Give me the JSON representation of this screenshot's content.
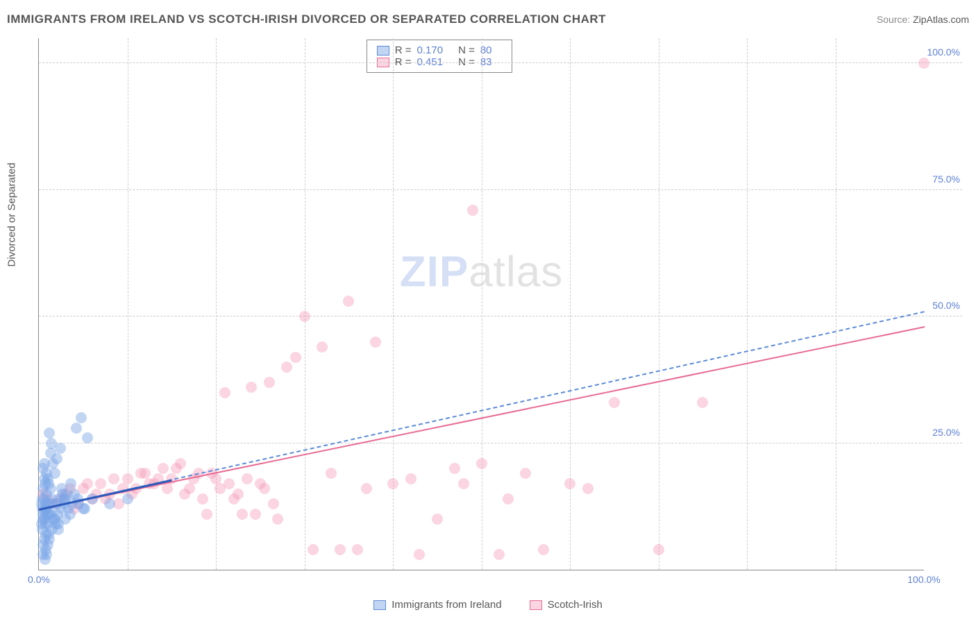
{
  "title": "IMMIGRANTS FROM IRELAND VS SCOTCH-IRISH DIVORCED OR SEPARATED CORRELATION CHART",
  "source_label": "Source: ",
  "source_value": "ZipAtlas.com",
  "y_axis_label": "Divorced or Separated",
  "watermark_zip": "ZIP",
  "watermark_atlas": "atlas",
  "chart": {
    "type": "scatter",
    "background_color": "#ffffff",
    "grid_color": "#cccccc",
    "axis_color": "#888888",
    "tick_label_color": "#5b7fd6",
    "xlim": [
      0,
      100
    ],
    "ylim": [
      0,
      105
    ],
    "x_ticks": [
      {
        "v": 0,
        "label": "0.0%"
      },
      {
        "v": 100,
        "label": "100.0%"
      }
    ],
    "y_ticks": [
      {
        "v": 25,
        "label": "25.0%"
      },
      {
        "v": 50,
        "label": "50.0%"
      },
      {
        "v": 75,
        "label": "75.0%"
      },
      {
        "v": 100,
        "label": "100.0%"
      }
    ],
    "x_grid_minor": [
      10,
      20,
      30,
      40,
      50,
      60,
      70,
      80,
      90
    ],
    "point_radius": 8,
    "series": [
      {
        "name": "Immigrants from Ireland",
        "fill_color": "rgba(120,165,230,0.45)",
        "stroke_color": "#5b8bd6",
        "R": "0.170",
        "N": "80",
        "trendline": {
          "x1": 0,
          "y1": 12,
          "x2": 100,
          "y2": 51,
          "style": "dashed",
          "color": "#5b8bd6"
        },
        "trendline_short": {
          "x1": 0,
          "y1": 12,
          "x2": 15,
          "y2": 17.8,
          "style": "solid",
          "color": "#2b5bbd",
          "width": 3
        },
        "points": [
          [
            0.5,
            11
          ],
          [
            0.6,
            10
          ],
          [
            0.8,
            13
          ],
          [
            1.0,
            9
          ],
          [
            0.7,
            12
          ],
          [
            1.2,
            11
          ],
          [
            1.5,
            14
          ],
          [
            0.4,
            8
          ],
          [
            0.9,
            15
          ],
          [
            1.1,
            7
          ],
          [
            2.0,
            13
          ],
          [
            1.8,
            10
          ],
          [
            0.6,
            6
          ],
          [
            1.3,
            16
          ],
          [
            0.3,
            13
          ],
          [
            2.5,
            12
          ],
          [
            0.5,
            5
          ],
          [
            1.0,
            18
          ],
          [
            3.0,
            14
          ],
          [
            0.8,
            4
          ],
          [
            1.4,
            11
          ],
          [
            4.0,
            15
          ],
          [
            0.7,
            9
          ],
          [
            2.2,
            8
          ],
          [
            0.5,
            20
          ],
          [
            1.6,
            13
          ],
          [
            0.9,
            3
          ],
          [
            3.5,
            11
          ],
          [
            1.1,
            17
          ],
          [
            0.4,
            14
          ],
          [
            5.0,
            12
          ],
          [
            1.9,
            9
          ],
          [
            0.6,
            21
          ],
          [
            2.8,
            14
          ],
          [
            0.8,
            11
          ],
          [
            1.2,
            6
          ],
          [
            4.5,
            13
          ],
          [
            0.5,
            16
          ],
          [
            1.7,
            10
          ],
          [
            0.3,
            9
          ],
          [
            2.0,
            22
          ],
          [
            3.2,
            15
          ],
          [
            0.9,
            12
          ],
          [
            1.5,
            8
          ],
          [
            5.5,
            26
          ],
          [
            0.7,
            17
          ],
          [
            1.0,
            5
          ],
          [
            4.2,
            28
          ],
          [
            2.4,
            24
          ],
          [
            0.6,
            14
          ],
          [
            1.8,
            19
          ],
          [
            3.8,
            13
          ],
          [
            0.5,
            10
          ],
          [
            2.1,
            11
          ],
          [
            6.0,
            14
          ],
          [
            1.3,
            23
          ],
          [
            0.8,
            7
          ],
          [
            4.8,
            30
          ],
          [
            2.6,
            16
          ],
          [
            0.4,
            12
          ],
          [
            1.4,
            25
          ],
          [
            3.0,
            10
          ],
          [
            0.9,
            19
          ],
          [
            2.3,
            14
          ],
          [
            5.2,
            12
          ],
          [
            1.1,
            13
          ],
          [
            0.5,
            3
          ],
          [
            3.6,
            17
          ],
          [
            1.6,
            21
          ],
          [
            2.9,
            13
          ],
          [
            0.7,
            2
          ],
          [
            4.4,
            14
          ],
          [
            1.2,
            27
          ],
          [
            8.0,
            13
          ],
          [
            2.7,
            15
          ],
          [
            0.6,
            18
          ],
          [
            1.0,
            11
          ],
          [
            3.3,
            12
          ],
          [
            10.0,
            14
          ],
          [
            2.2,
            9
          ]
        ]
      },
      {
        "name": "Scotch-Irish",
        "fill_color": "rgba(245,150,180,0.40)",
        "stroke_color": "#e86b92",
        "R": "0.451",
        "N": "83",
        "trendline": {
          "x1": 0,
          "y1": 12,
          "x2": 100,
          "y2": 48,
          "style": "solid",
          "color": "#e86b92"
        },
        "points": [
          [
            1,
            14
          ],
          [
            2,
            13
          ],
          [
            3,
            15
          ],
          [
            4,
            12
          ],
          [
            5,
            16
          ],
          [
            6,
            14
          ],
          [
            7,
            17
          ],
          [
            8,
            15
          ],
          [
            9,
            13
          ],
          [
            10,
            18
          ],
          [
            11,
            16
          ],
          [
            12,
            19
          ],
          [
            13,
            17
          ],
          [
            14,
            20
          ],
          [
            15,
            18
          ],
          [
            16,
            21
          ],
          [
            17,
            16
          ],
          [
            18,
            19
          ],
          [
            19,
            11
          ],
          [
            20,
            18
          ],
          [
            21,
            35
          ],
          [
            22,
            14
          ],
          [
            23,
            11
          ],
          [
            24,
            36
          ],
          [
            25,
            17
          ],
          [
            26,
            37
          ],
          [
            27,
            10
          ],
          [
            28,
            40
          ],
          [
            29,
            42
          ],
          [
            30,
            50
          ],
          [
            31,
            4
          ],
          [
            32,
            44
          ],
          [
            33,
            19
          ],
          [
            34,
            4
          ],
          [
            35,
            53
          ],
          [
            36,
            4
          ],
          [
            37,
            16
          ],
          [
            38,
            45
          ],
          [
            40,
            17
          ],
          [
            42,
            18
          ],
          [
            43,
            3
          ],
          [
            45,
            10
          ],
          [
            47,
            20
          ],
          [
            48,
            17
          ],
          [
            49,
            71
          ],
          [
            50,
            21
          ],
          [
            52,
            3
          ],
          [
            53,
            14
          ],
          [
            55,
            19
          ],
          [
            57,
            4
          ],
          [
            60,
            17
          ],
          [
            62,
            16
          ],
          [
            65,
            33
          ],
          [
            70,
            4
          ],
          [
            75,
            33
          ],
          [
            100,
            100
          ],
          [
            0.5,
            15
          ],
          [
            1.5,
            13
          ],
          [
            2.5,
            14
          ],
          [
            3.5,
            16
          ],
          [
            4.5,
            13
          ],
          [
            5.5,
            17
          ],
          [
            6.5,
            15
          ],
          [
            7.5,
            14
          ],
          [
            8.5,
            18
          ],
          [
            9.5,
            16
          ],
          [
            10.5,
            15
          ],
          [
            11.5,
            19
          ],
          [
            12.5,
            17
          ],
          [
            13.5,
            18
          ],
          [
            14.5,
            16
          ],
          [
            15.5,
            20
          ],
          [
            16.5,
            15
          ],
          [
            17.5,
            18
          ],
          [
            18.5,
            14
          ],
          [
            19.5,
            19
          ],
          [
            20.5,
            16
          ],
          [
            21.5,
            17
          ],
          [
            22.5,
            15
          ],
          [
            23.5,
            18
          ],
          [
            24.5,
            11
          ],
          [
            25.5,
            16
          ],
          [
            26.5,
            13
          ]
        ]
      }
    ]
  },
  "bottom_legend": [
    {
      "label": "Immigrants from Ireland",
      "fill": "rgba(120,165,230,0.45)",
      "stroke": "#5b8bd6"
    },
    {
      "label": "Scotch-Irish",
      "fill": "rgba(245,150,180,0.40)",
      "stroke": "#e86b92"
    }
  ]
}
